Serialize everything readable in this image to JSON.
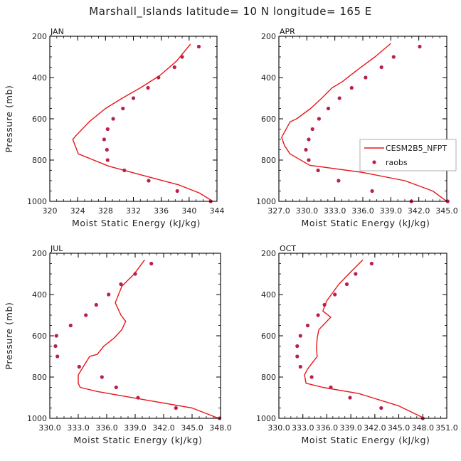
{
  "figure": {
    "title": "Marshall_Islands   latitude= 10 N  longitude= 165 E"
  },
  "colors": {
    "model": "#e8161b",
    "obs": "#b8204e",
    "axis": "#000000"
  },
  "legend": {
    "panel": 1,
    "entries": [
      {
        "label": "CESM2B5_NFPT",
        "kind": "line"
      },
      {
        "label": "raobs",
        "kind": "marker"
      }
    ]
  },
  "chart_data": [
    {
      "type": "line",
      "panel_label": "JAN",
      "xlabel": "Moist Static Energy (kJ/kg)",
      "ylabel": "Pressure (mb)",
      "xlim": [
        320,
        344
      ],
      "ylim": [
        200,
        1000
      ],
      "xticks": [
        320,
        324,
        328,
        332,
        336,
        340,
        344
      ],
      "xtick_labels": [
        "320",
        "324",
        "328",
        "332",
        "336",
        "340",
        "344"
      ],
      "yticks": [
        200,
        400,
        600,
        800,
        1000
      ],
      "ytick_labels": [
        "200",
        "400",
        "600",
        "800",
        "1000"
      ],
      "series": [
        {
          "name": "CESM2B5_NFPT",
          "x": [
            340.2,
            338.2,
            335.8,
            333.0,
            330.4,
            328.0,
            325.8,
            323.8,
            323.3,
            324.1,
            328.5,
            334.0,
            338.5,
            341.5,
            343.4
          ],
          "y": [
            238,
            320,
            390,
            450,
            500,
            550,
            610,
            680,
            700,
            770,
            830,
            880,
            920,
            960,
            1000
          ]
        },
        {
          "name": "raobs",
          "x": [
            341.4,
            339.0,
            337.9,
            335.6,
            334.1,
            332.0,
            330.5,
            329.1,
            328.3,
            327.8,
            328.2,
            328.3,
            330.7,
            334.2,
            338.3,
            343.1
          ],
          "y": [
            250,
            300,
            350,
            400,
            450,
            500,
            550,
            600,
            650,
            700,
            750,
            800,
            850,
            900,
            950,
            1000
          ]
        }
      ]
    },
    {
      "type": "line",
      "panel_label": "APR",
      "xlabel": "Moist Static Energy (kJ/kg)",
      "ylabel": "",
      "xlim": [
        327,
        345
      ],
      "ylim": [
        200,
        1000
      ],
      "xticks": [
        327,
        330,
        333,
        336,
        339,
        342,
        345
      ],
      "xtick_labels": [
        "327.0",
        "330.0",
        "333.0",
        "336.0",
        "339.0",
        "342.0",
        "345.0"
      ],
      "yticks": [
        200,
        400,
        600,
        800,
        1000
      ],
      "ytick_labels": [
        "200",
        "400",
        "600",
        "800",
        "1000"
      ],
      "series": [
        {
          "name": "CESM2B5_NFPT",
          "x": [
            339.0,
            337.3,
            335.5,
            333.8,
            332.7,
            331.6,
            330.4,
            328.9,
            328.2,
            327.3,
            327.6,
            328.2,
            330.3,
            336.0,
            340.5,
            343.5,
            345.0
          ],
          "y": [
            235,
            300,
            360,
            420,
            450,
            500,
            550,
            600,
            615,
            690,
            730,
            770,
            825,
            860,
            900,
            950,
            1000
          ]
        },
        {
          "name": "raobs",
          "x": [
            342.1,
            339.3,
            338.0,
            336.3,
            334.8,
            333.5,
            332.3,
            331.3,
            330.6,
            330.2,
            329.9,
            330.2,
            331.2,
            333.4,
            337.0,
            341.2,
            345.1
          ],
          "y": [
            250,
            300,
            350,
            400,
            450,
            500,
            550,
            600,
            650,
            700,
            750,
            800,
            850,
            900,
            950,
            1000,
            1000
          ]
        }
      ]
    },
    {
      "type": "line",
      "panel_label": "JUL",
      "xlabel": "Moist Static Energy (kJ/kg)",
      "ylabel": "Pressure (mb)",
      "xlim": [
        330,
        348
      ],
      "ylim": [
        200,
        1000
      ],
      "xticks": [
        330,
        333,
        336,
        339,
        342,
        345,
        348
      ],
      "xtick_labels": [
        "330.0",
        "333.0",
        "336.0",
        "339.0",
        "342.0",
        "345.0",
        "348.0"
      ],
      "yticks": [
        200,
        400,
        600,
        800,
        1000
      ],
      "ytick_labels": [
        "200",
        "400",
        "600",
        "800",
        "1000"
      ],
      "series": [
        {
          "name": "CESM2B5_NFPT",
          "x": [
            340.0,
            338.9,
            337.6,
            336.9,
            337.5,
            338.0,
            337.6,
            336.8,
            335.7,
            335.0,
            334.2,
            333.4,
            333.0,
            333.0,
            333.2,
            335.0,
            340.0,
            345.0,
            347.8
          ],
          "y": [
            232,
            300,
            360,
            440,
            500,
            530,
            570,
            610,
            650,
            690,
            700,
            760,
            790,
            830,
            850,
            870,
            910,
            950,
            1000
          ]
        },
        {
          "name": "raobs",
          "x": [
            340.7,
            339.0,
            337.5,
            336.2,
            334.9,
            333.8,
            332.2,
            330.7,
            330.6,
            330.8,
            333.1,
            335.5,
            337.0,
            339.3,
            343.3,
            347.9
          ],
          "y": [
            250,
            300,
            350,
            400,
            450,
            500,
            550,
            600,
            650,
            700,
            750,
            800,
            850,
            900,
            950,
            1000
          ]
        }
      ]
    },
    {
      "type": "line",
      "panel_label": "OCT",
      "xlabel": "Moist Static Energy (kJ/kg)",
      "ylabel": "",
      "xlim": [
        330.0,
        351.0
      ],
      "ylim": [
        200,
        1000
      ],
      "xticks": [
        330,
        333,
        336,
        339,
        342,
        345,
        348,
        351
      ],
      "xtick_labels": [
        "330.0",
        "333.0",
        "336.0",
        "339.0",
        "342.0",
        "345.0",
        "348.0",
        "351.0"
      ],
      "yticks": [
        200,
        400,
        600,
        800,
        1000
      ],
      "ytick_labels": [
        "200",
        "400",
        "600",
        "800",
        "1000"
      ],
      "series": [
        {
          "name": "CESM2B5_NFPT",
          "x": [
            340.5,
            339.0,
            337.5,
            336.0,
            335.5,
            336.5,
            335.0,
            334.8,
            334.7,
            334.8,
            333.6,
            333.2,
            333.4,
            335.5,
            340.0,
            345.0,
            348.2
          ],
          "y": [
            232,
            290,
            350,
            430,
            480,
            510,
            570,
            610,
            660,
            700,
            760,
            790,
            830,
            850,
            880,
            940,
            1000
          ]
        },
        {
          "name": "raobs",
          "x": [
            341.6,
            339.6,
            338.5,
            337.0,
            335.7,
            334.9,
            333.6,
            332.7,
            332.3,
            332.3,
            332.7,
            334.1,
            336.5,
            338.9,
            342.8,
            348.0
          ],
          "y": [
            250,
            300,
            350,
            400,
            450,
            500,
            550,
            600,
            650,
            700,
            750,
            800,
            850,
            900,
            950,
            1000
          ]
        }
      ]
    }
  ]
}
